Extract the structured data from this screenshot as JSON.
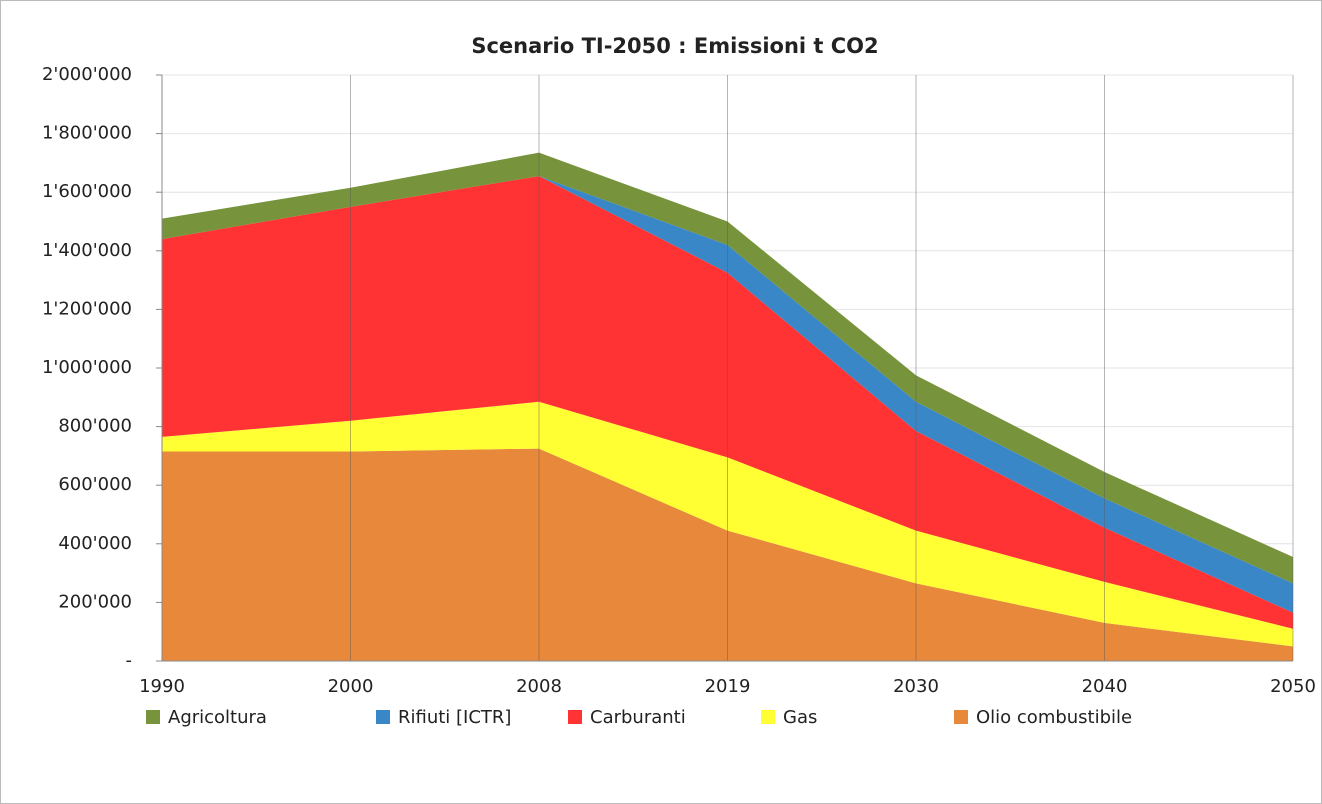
{
  "chart_data": {
    "type": "stacked_area",
    "title": "Scenario TI-2050 : Emissioni t CO2",
    "categories": [
      "1990",
      "2000",
      "2008",
      "2019",
      "2030",
      "2040",
      "2050"
    ],
    "series": [
      {
        "name": "Agricoltura",
        "color": "#77933c",
        "values": [
          70000,
          65000,
          80000,
          80000,
          90000,
          90000,
          90000
        ]
      },
      {
        "name": "Rifiuti [ICTR]",
        "color": "#3a87c8",
        "values": [
          0,
          0,
          0,
          95000,
          100000,
          100000,
          100000
        ]
      },
      {
        "name": "Carburanti",
        "color": "#ff3333",
        "values": [
          675000,
          730000,
          770000,
          630000,
          340000,
          185000,
          55000
        ]
      },
      {
        "name": "Gas",
        "color": "#ffff33",
        "values": [
          50000,
          105000,
          160000,
          250000,
          180000,
          140000,
          60000
        ]
      },
      {
        "name": "Olio combustibile",
        "color": "#e8883a",
        "values": [
          715000,
          715000,
          725000,
          445000,
          265000,
          130000,
          50000
        ]
      }
    ],
    "ylim": [
      0,
      2000000
    ],
    "yticks": [
      {
        "value": 0,
        "label": "-"
      },
      {
        "value": 200000,
        "label": "200'000"
      },
      {
        "value": 400000,
        "label": "400'000"
      },
      {
        "value": 600000,
        "label": "600'000"
      },
      {
        "value": 800000,
        "label": "800'000"
      },
      {
        "value": 1000000,
        "label": "1'000'000"
      },
      {
        "value": 1200000,
        "label": "1'200'000"
      },
      {
        "value": 1400000,
        "label": "1'400'000"
      },
      {
        "value": 1600000,
        "label": "1'600'000"
      },
      {
        "value": 1800000,
        "label": "1'800'000"
      },
      {
        "value": 2000000,
        "label": "2'000'000"
      }
    ],
    "grid": true,
    "legend": "bottom"
  }
}
